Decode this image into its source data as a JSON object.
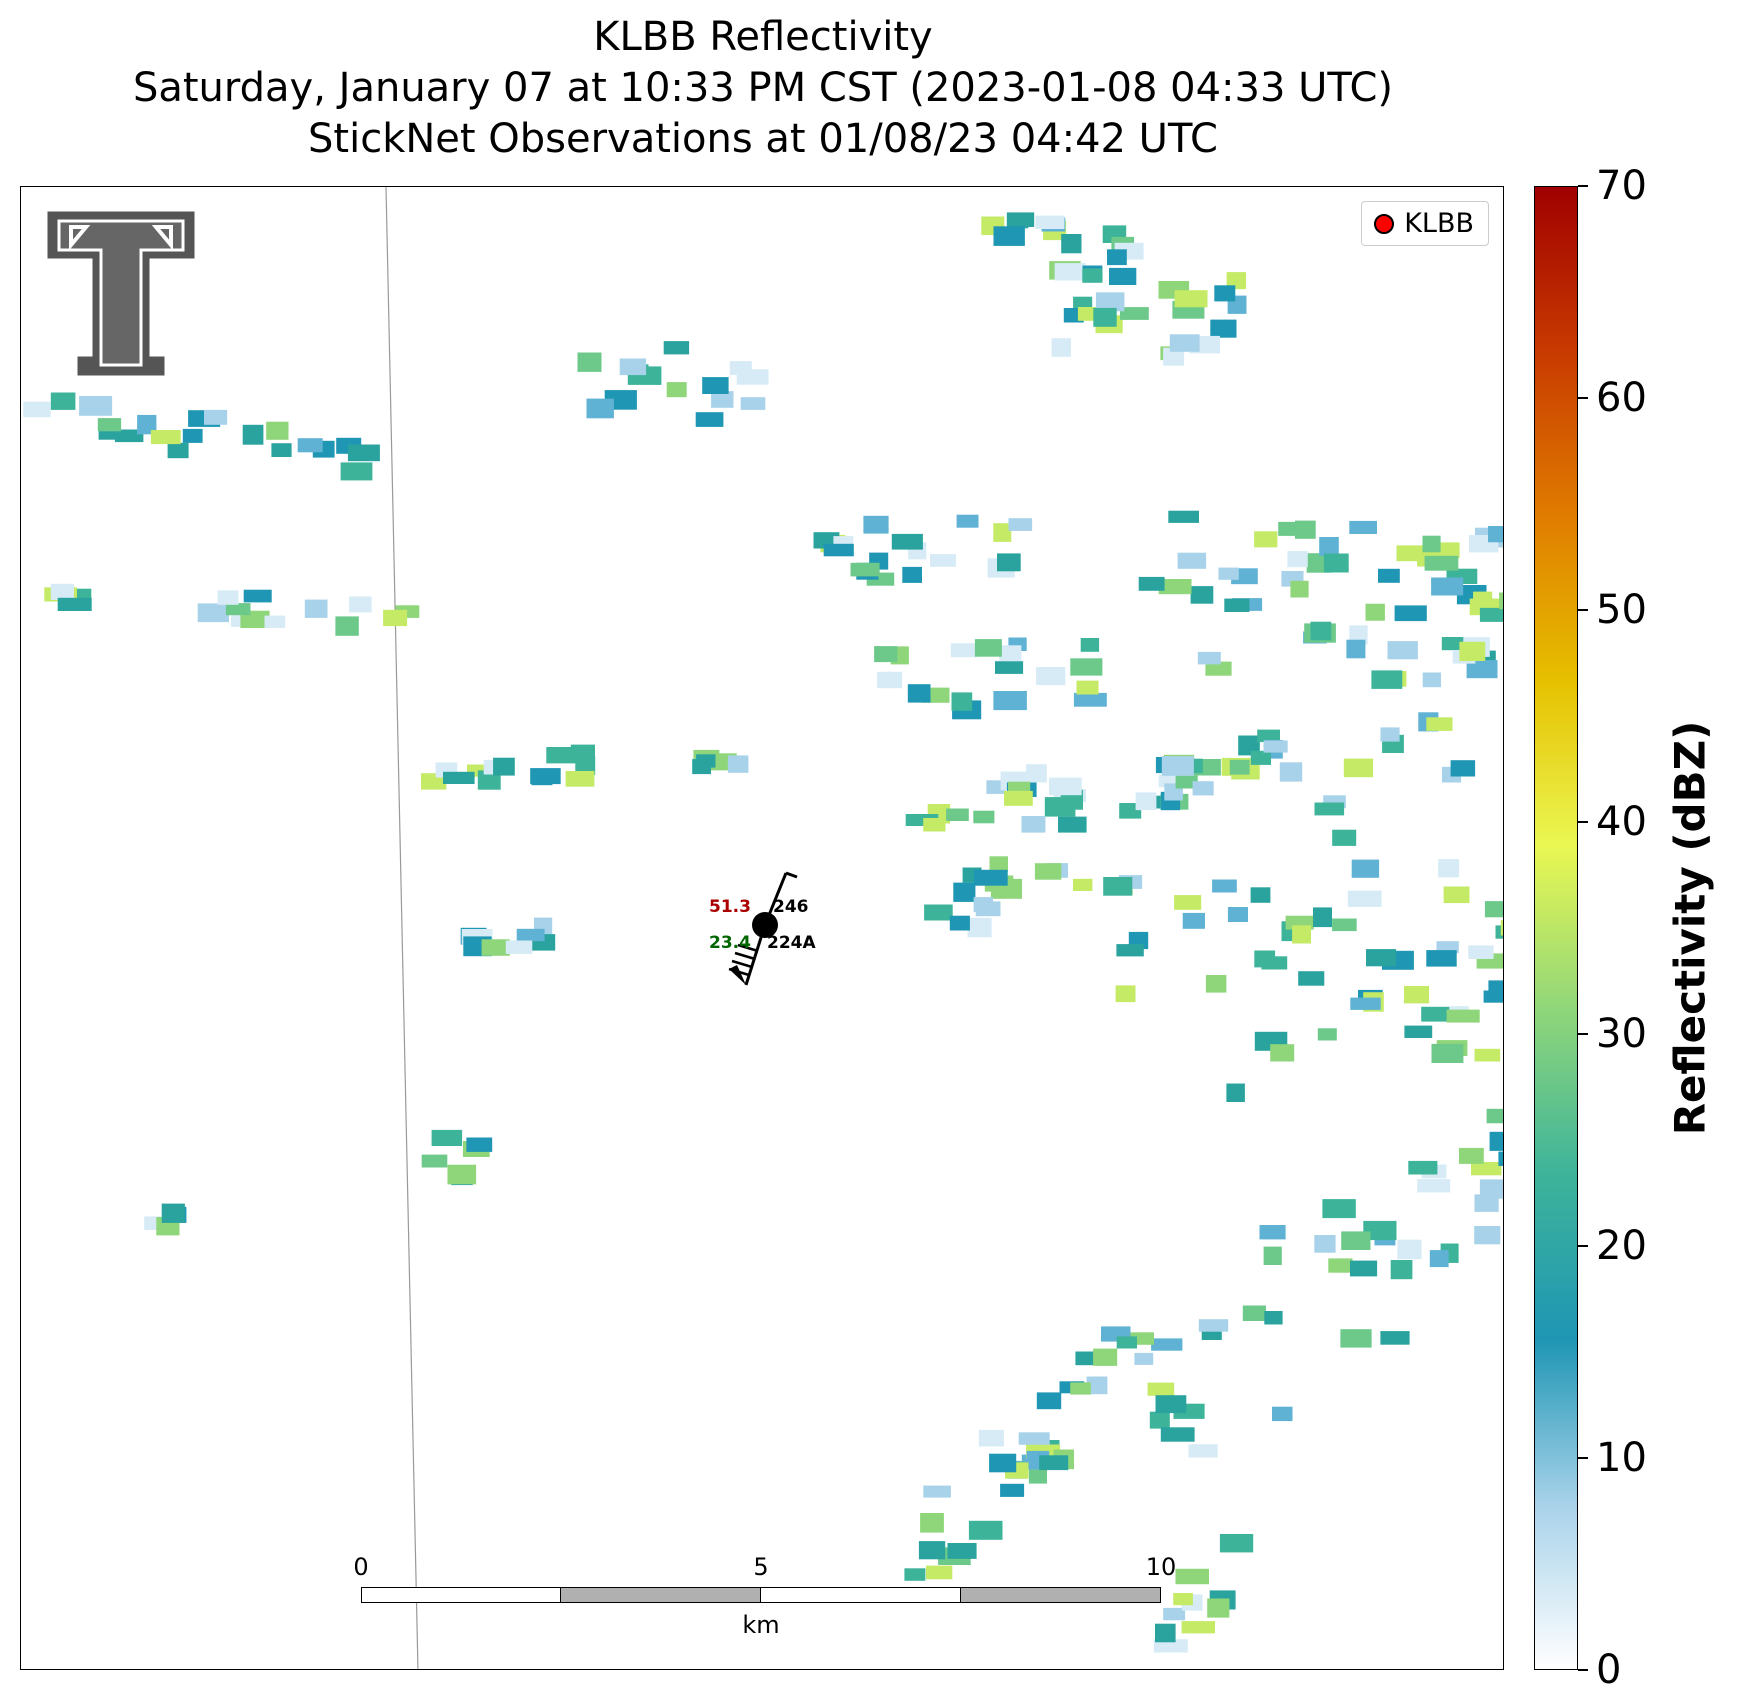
{
  "title": {
    "line1": "KLBB Reflectivity",
    "line2": "Saturday, January 07 at 10:33 PM CST (2023-01-08 04:33 UTC)",
    "line3": "StickNet Observations at 01/08/23 04:42 UTC"
  },
  "legend": {
    "label": "KLBB",
    "marker_color": "#ff0000"
  },
  "scalebar": {
    "ticks": [
      "0",
      "5",
      "10"
    ],
    "unit": "km"
  },
  "station": {
    "temperature": "51.3",
    "dewpoint": "23.4",
    "pressure_code": "246",
    "station_id": "224A"
  },
  "colorbar": {
    "title": "Reflectivity (dBZ)",
    "min": 0,
    "max": 70,
    "ticks": [
      "0",
      "10",
      "20",
      "30",
      "40",
      "50",
      "60",
      "70"
    ],
    "colors": [
      "#ffffff",
      "#a8d2ea",
      "#1f96b4",
      "#3db39a",
      "#8fd67a",
      "#eaf752",
      "#e6c000",
      "#e07c00",
      "#c83a00",
      "#a00000"
    ]
  },
  "logo": {
    "name": "Texas Tech Double T"
  }
}
